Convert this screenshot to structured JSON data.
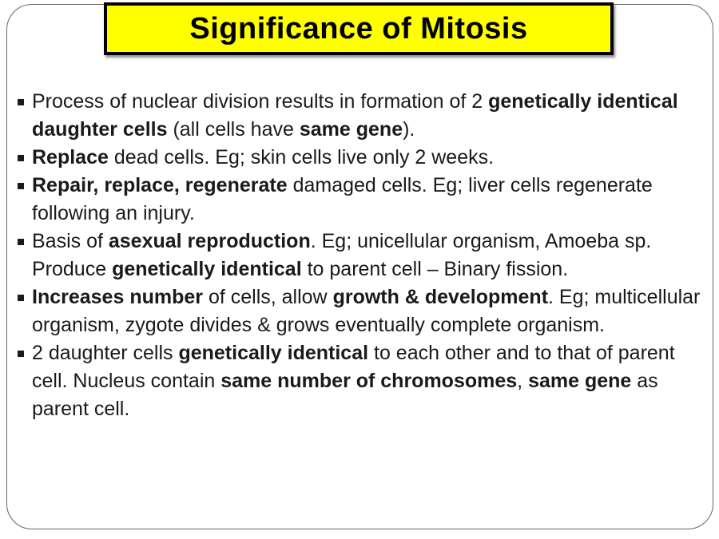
{
  "slide": {
    "title": "Significance of Mitosis",
    "colors": {
      "title_bg": "#ffff00",
      "title_border": "#000000",
      "title_text": "#000000",
      "frame_border": "#666666",
      "body_text": "#1a1a1a",
      "background": "#ffffff"
    },
    "bullet_icon": "square-bullet",
    "bullets": [
      {
        "segments": [
          {
            "text": "Process of nuclear division results in formation of 2 ",
            "bold": false
          },
          {
            "text": "genetically identical daughter cells",
            "bold": true
          },
          {
            "text": " (all cells have ",
            "bold": false
          },
          {
            "text": "same gene",
            "bold": true
          },
          {
            "text": ").",
            "bold": false
          }
        ]
      },
      {
        "segments": [
          {
            "text": "Replace",
            "bold": true
          },
          {
            "text": " dead cells. Eg; skin cells live only 2 weeks.",
            "bold": false
          }
        ]
      },
      {
        "segments": [
          {
            "text": "Repair, replace, regenerate",
            "bold": true
          },
          {
            "text": " damaged cells. Eg; liver cells regenerate following an injury.",
            "bold": false
          }
        ]
      },
      {
        "segments": [
          {
            "text": "Basis of ",
            "bold": false
          },
          {
            "text": "asexual reproduction",
            "bold": true
          },
          {
            "text": ". Eg; unicellular organism, Amoeba sp. Produce ",
            "bold": false
          },
          {
            "text": "genetically identical",
            "bold": true
          },
          {
            "text": " to parent cell – Binary fission.",
            "bold": false
          }
        ]
      },
      {
        "segments": [
          {
            "text": "Increases number",
            "bold": true
          },
          {
            "text": " of cells, allow ",
            "bold": false
          },
          {
            "text": "growth & development",
            "bold": true
          },
          {
            "text": ". Eg; multicellular organism, zygote divides & grows eventually complete organism.",
            "bold": false
          }
        ]
      },
      {
        "segments": [
          {
            "text": "2 daughter cells ",
            "bold": false
          },
          {
            "text": "genetically identical",
            "bold": true
          },
          {
            "text": " to each other and to that of parent cell. Nucleus contain ",
            "bold": false
          },
          {
            "text": "same number of chromosomes",
            "bold": true
          },
          {
            "text": ", ",
            "bold": false
          },
          {
            "text": "same gene",
            "bold": true
          },
          {
            "text": " as parent cell.",
            "bold": false
          }
        ]
      }
    ]
  }
}
